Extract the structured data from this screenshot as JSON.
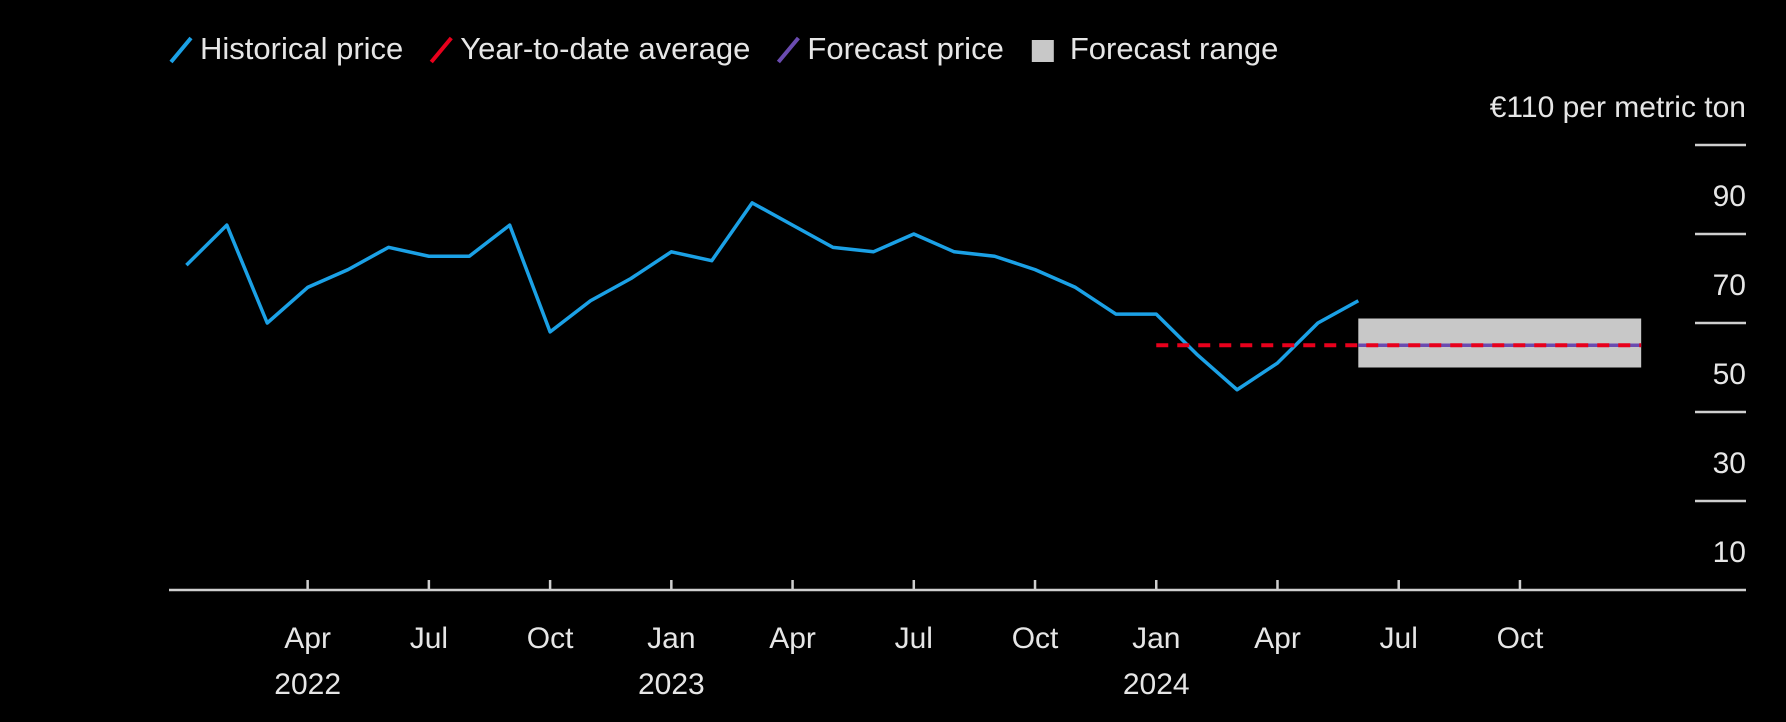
{
  "chart_data": {
    "type": "line",
    "series": [
      {
        "name": "Historical price",
        "color": "#1ba1e6",
        "line_style": "solid",
        "x": [
          "2022-01",
          "2022-02",
          "2022-03",
          "2022-04",
          "2022-05",
          "2022-06",
          "2022-07",
          "2022-08",
          "2022-09",
          "2022-10",
          "2022-11",
          "2022-12",
          "2023-01",
          "2023-02",
          "2023-03",
          "2023-04",
          "2023-05",
          "2023-06",
          "2023-07",
          "2023-08",
          "2023-09",
          "2023-10",
          "2023-11",
          "2023-12",
          "2024-01",
          "2024-02",
          "2024-03",
          "2024-04",
          "2024-05",
          "2024-06"
        ],
        "values": [
          83,
          92,
          70,
          78,
          82,
          87,
          85,
          85,
          92,
          68,
          75,
          80,
          86,
          84,
          97,
          92,
          87,
          86,
          90,
          86,
          85,
          82,
          78,
          72,
          72,
          63,
          55,
          61,
          70,
          75
        ]
      },
      {
        "name": "Year-to-date average",
        "color": "#e8001c",
        "line_style": "dashed",
        "x": [
          "2024-01",
          "2025-01"
        ],
        "values": [
          65,
          65
        ]
      },
      {
        "name": "Forecast price",
        "color": "#6a4bb0",
        "line_style": "solid",
        "x": [
          "2024-06",
          "2025-01"
        ],
        "values": [
          65,
          65
        ]
      }
    ],
    "bands": [
      {
        "name": "Forecast range",
        "color": "#c8c8c8",
        "x": [
          "2024-06",
          "2025-01"
        ],
        "low": [
          60,
          60
        ],
        "high": [
          71,
          71
        ]
      }
    ],
    "xlim": [
      "2021-12",
      "2025-03"
    ],
    "xticks": [
      {
        "value": "2022-04",
        "label": "Apr"
      },
      {
        "value": "2022-07",
        "label": "Jul"
      },
      {
        "value": "2022-10",
        "label": "Oct"
      },
      {
        "value": "2023-01",
        "label": "Jan"
      },
      {
        "value": "2023-04",
        "label": "Apr"
      },
      {
        "value": "2023-07",
        "label": "Jul"
      },
      {
        "value": "2023-10",
        "label": "Oct"
      },
      {
        "value": "2024-01",
        "label": "Jan"
      },
      {
        "value": "2024-04",
        "label": "Apr"
      },
      {
        "value": "2024-07",
        "label": "Jul"
      },
      {
        "value": "2024-10",
        "label": "Oct"
      }
    ],
    "x_year_labels": [
      {
        "value": "2022-04",
        "label": "2022"
      },
      {
        "value": "2023-01",
        "label": "2023"
      },
      {
        "value": "2024-01",
        "label": "2024"
      }
    ],
    "ylim": [
      10,
      110
    ],
    "yticks": [
      10,
      30,
      50,
      70,
      90,
      {
        "value": 110,
        "label": "€110 per metric ton"
      }
    ],
    "legend": "top"
  }
}
